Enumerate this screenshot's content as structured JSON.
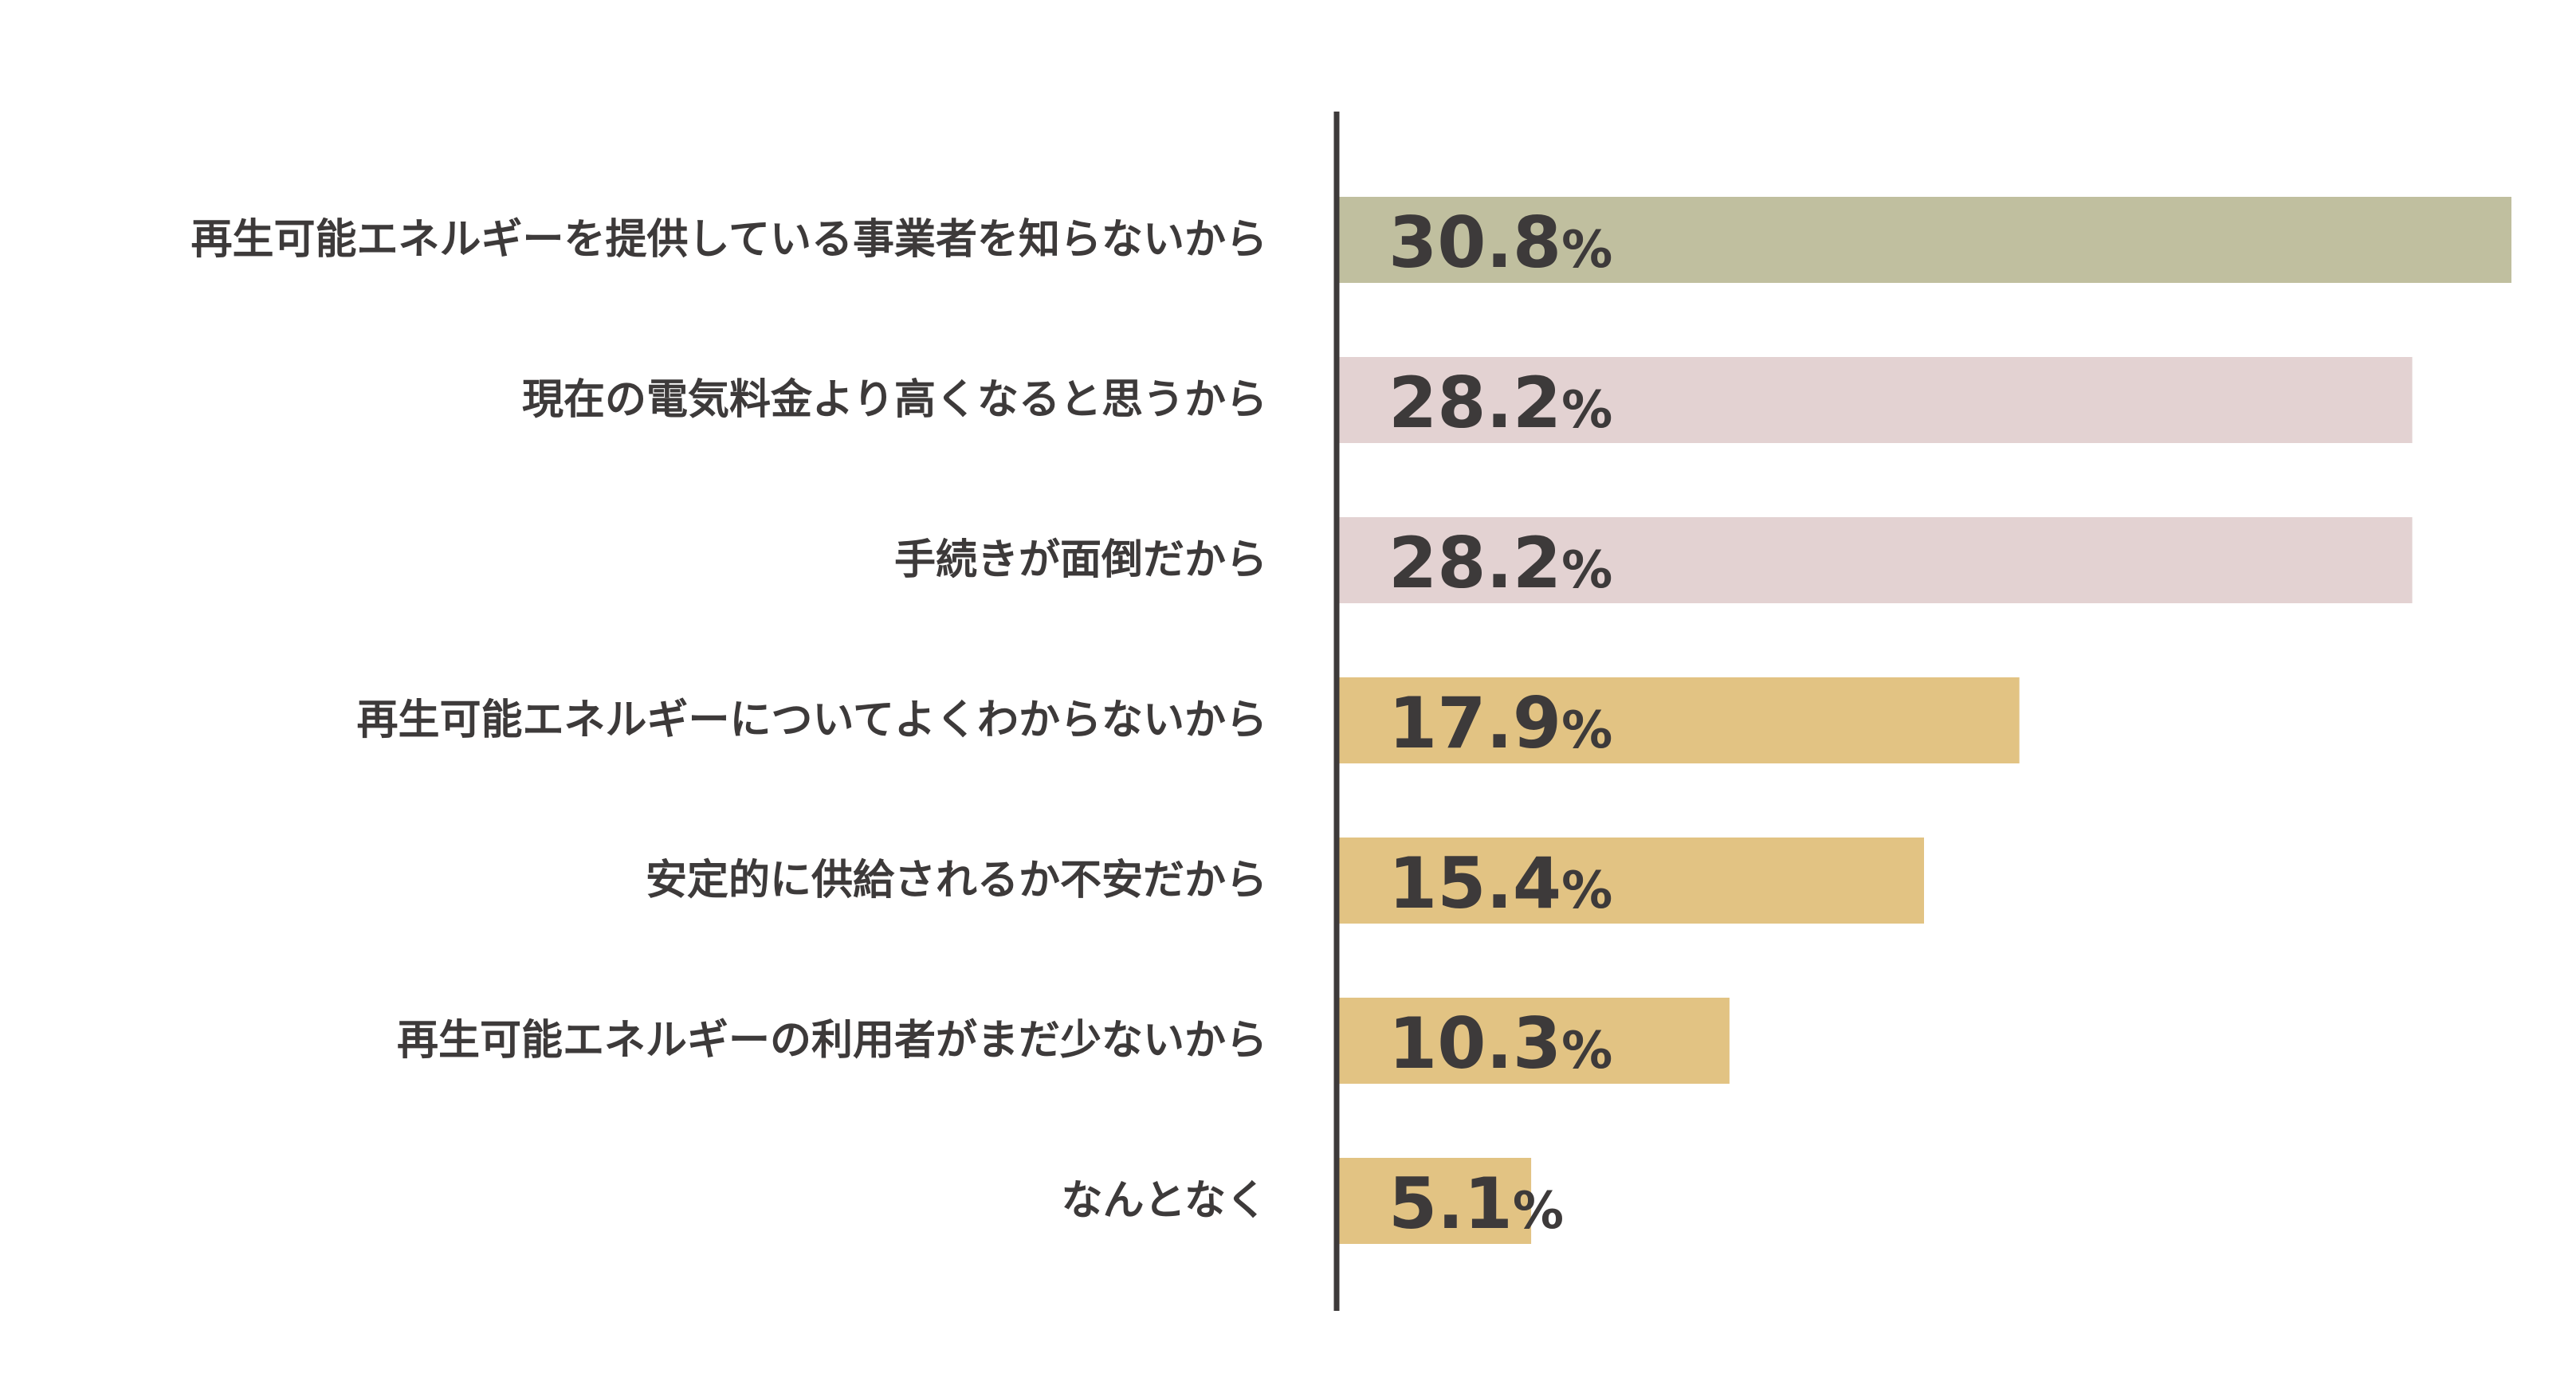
{
  "chart_data": {
    "type": "bar",
    "orientation": "horizontal",
    "categories": [
      "再生可能エネルギーを提供している事業者を知らないから",
      "現在の電気料金より高くなると思うから",
      "手続きが面倒だから",
      "再生可能エネルギーについてよくわからないから",
      "安定的に供給されるか不安だから",
      "再生可能エネルギーの利用者がまだ少ないから",
      "なんとなく"
    ],
    "values": [
      30.8,
      28.2,
      28.2,
      17.9,
      15.4,
      10.3,
      5.1
    ],
    "value_labels": [
      "30.8",
      "28.2",
      "28.2",
      "17.9",
      "15.4",
      "10.3",
      "5.1"
    ],
    "unit": "%",
    "bar_colors": [
      "#c0bf9f",
      "#e3d2d2",
      "#e3d2d2",
      "#e2c383",
      "#e2c383",
      "#e2c383",
      "#e2c383"
    ],
    "axis_color": "#3d3a3a",
    "text_color": "#3d3a3a",
    "xlim": [
      0,
      30.8
    ],
    "grid": false,
    "legend": "none"
  }
}
